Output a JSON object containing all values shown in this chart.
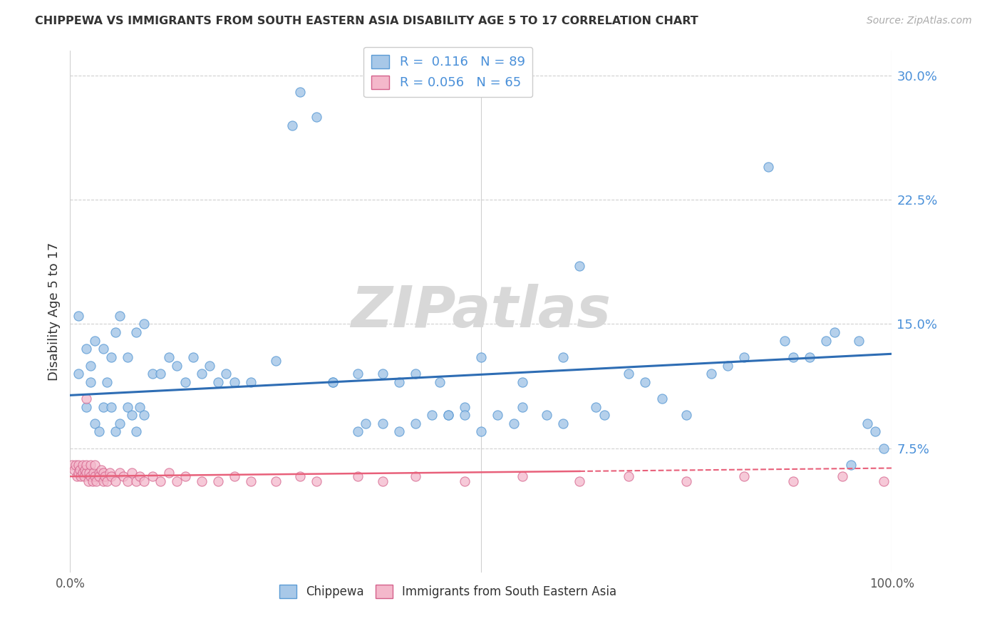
{
  "title": "CHIPPEWA VS IMMIGRANTS FROM SOUTH EASTERN ASIA DISABILITY AGE 5 TO 17 CORRELATION CHART",
  "source": "Source: ZipAtlas.com",
  "ylabel": "Disability Age 5 to 17",
  "ytick_vals": [
    0.075,
    0.15,
    0.225,
    0.3
  ],
  "ytick_labels": [
    "7.5%",
    "15.0%",
    "22.5%",
    "30.0%"
  ],
  "xlim": [
    0.0,
    1.0
  ],
  "ylim": [
    0.0,
    0.315
  ],
  "color_chippewa_fill": "#a8c8e8",
  "color_chippewa_edge": "#5b9bd5",
  "color_immigrants_fill": "#f4b8cb",
  "color_immigrants_edge": "#d4608a",
  "color_line_chippewa": "#2e6db4",
  "color_line_immigrants": "#e8607a",
  "background_color": "#ffffff",
  "grid_color": "#d0d0d0",
  "watermark_color": "#d8d8d8",
  "title_color": "#333333",
  "label_color": "#4a90d9",
  "legend_label_color": "#4a90d9",
  "chippewa_x": [
    0.01,
    0.02,
    0.025,
    0.03,
    0.035,
    0.04,
    0.045,
    0.05,
    0.055,
    0.06,
    0.07,
    0.075,
    0.08,
    0.085,
    0.09,
    0.01,
    0.02,
    0.025,
    0.03,
    0.04,
    0.05,
    0.055,
    0.06,
    0.07,
    0.08,
    0.09,
    0.1,
    0.11,
    0.12,
    0.13,
    0.14,
    0.15,
    0.16,
    0.17,
    0.18,
    0.19,
    0.2,
    0.22,
    0.25,
    0.27,
    0.28,
    0.3,
    0.32,
    0.35,
    0.38,
    0.4,
    0.42,
    0.45,
    0.46,
    0.48,
    0.5,
    0.52,
    0.54,
    0.55,
    0.58,
    0.6,
    0.62,
    0.64,
    0.65,
    0.68,
    0.7,
    0.72,
    0.75,
    0.78,
    0.8,
    0.82,
    0.85,
    0.87,
    0.88,
    0.9,
    0.92,
    0.93,
    0.95,
    0.96,
    0.97,
    0.98,
    0.99,
    0.5,
    0.6,
    0.55,
    0.48,
    0.46,
    0.44,
    0.42,
    0.4,
    0.38,
    0.36,
    0.35,
    0.32
  ],
  "chippewa_y": [
    0.12,
    0.1,
    0.115,
    0.09,
    0.085,
    0.1,
    0.115,
    0.1,
    0.085,
    0.09,
    0.1,
    0.095,
    0.085,
    0.1,
    0.095,
    0.155,
    0.135,
    0.125,
    0.14,
    0.135,
    0.13,
    0.145,
    0.155,
    0.13,
    0.145,
    0.15,
    0.12,
    0.12,
    0.13,
    0.125,
    0.115,
    0.13,
    0.12,
    0.125,
    0.115,
    0.12,
    0.115,
    0.115,
    0.128,
    0.27,
    0.29,
    0.275,
    0.115,
    0.12,
    0.12,
    0.115,
    0.12,
    0.115,
    0.095,
    0.1,
    0.085,
    0.095,
    0.09,
    0.1,
    0.095,
    0.09,
    0.185,
    0.1,
    0.095,
    0.12,
    0.115,
    0.105,
    0.095,
    0.12,
    0.125,
    0.13,
    0.245,
    0.14,
    0.13,
    0.13,
    0.14,
    0.145,
    0.065,
    0.14,
    0.09,
    0.085,
    0.075,
    0.13,
    0.13,
    0.115,
    0.095,
    0.095,
    0.095,
    0.09,
    0.085,
    0.09,
    0.09,
    0.085,
    0.115
  ],
  "immigrants_x": [
    0.002,
    0.005,
    0.007,
    0.008,
    0.01,
    0.01,
    0.012,
    0.013,
    0.015,
    0.015,
    0.017,
    0.018,
    0.02,
    0.02,
    0.022,
    0.023,
    0.025,
    0.025,
    0.027,
    0.028,
    0.03,
    0.03,
    0.032,
    0.035,
    0.035,
    0.038,
    0.04,
    0.04,
    0.042,
    0.045,
    0.048,
    0.05,
    0.055,
    0.06,
    0.065,
    0.07,
    0.075,
    0.08,
    0.085,
    0.09,
    0.1,
    0.11,
    0.12,
    0.13,
    0.14,
    0.16,
    0.18,
    0.2,
    0.22,
    0.25,
    0.28,
    0.3,
    0.35,
    0.38,
    0.42,
    0.48,
    0.55,
    0.62,
    0.68,
    0.75,
    0.82,
    0.88,
    0.94,
    0.99,
    0.02
  ],
  "immigrants_y": [
    0.065,
    0.062,
    0.065,
    0.058,
    0.06,
    0.065,
    0.062,
    0.058,
    0.06,
    0.065,
    0.058,
    0.062,
    0.06,
    0.065,
    0.055,
    0.06,
    0.058,
    0.065,
    0.055,
    0.06,
    0.058,
    0.065,
    0.055,
    0.06,
    0.058,
    0.062,
    0.055,
    0.06,
    0.058,
    0.055,
    0.06,
    0.058,
    0.055,
    0.06,
    0.058,
    0.055,
    0.06,
    0.055,
    0.058,
    0.055,
    0.058,
    0.055,
    0.06,
    0.055,
    0.058,
    0.055,
    0.055,
    0.058,
    0.055,
    0.055,
    0.058,
    0.055,
    0.058,
    0.055,
    0.058,
    0.055,
    0.058,
    0.055,
    0.058,
    0.055,
    0.058,
    0.055,
    0.058,
    0.055,
    0.105
  ],
  "chip_trend_x0": 0.0,
  "chip_trend_y0": 0.107,
  "chip_trend_x1": 1.0,
  "chip_trend_y1": 0.132,
  "imm_trend_x0": 0.0,
  "imm_trend_y0": 0.058,
  "imm_trend_x1": 1.0,
  "imm_trend_y1": 0.063
}
